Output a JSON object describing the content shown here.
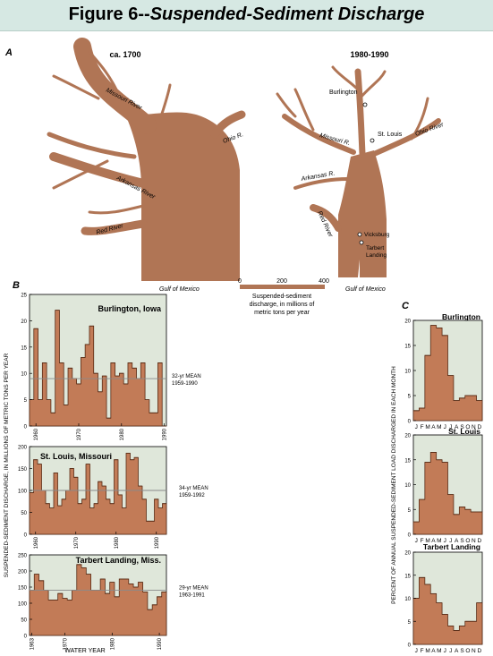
{
  "figure_title_prefix": "Figure 6--",
  "figure_title_main": "Suspended-Sediment Discharge",
  "panel_a": {
    "letter": "A",
    "left_title": "ca. 1700",
    "right_title": "1980-1990",
    "left_labels": {
      "missouri": "Missouri River",
      "ohio": "Ohio R.",
      "arkansas": "Arkansas River",
      "red": "Red River",
      "gulf": "Gulf of Mexico"
    },
    "right_labels": {
      "burlington": "Burlington",
      "stlouis": "St. Louis",
      "ohio": "Ohio River",
      "missouri": "Missouri R.",
      "arkansas": "Arkansas R.",
      "red": "Red River",
      "vicksburg": "Vicksburg",
      "tarbert": "Tarbert\nLanding",
      "gulf": "Gulf of Mexico"
    },
    "scale_ticks": [
      "0",
      "200",
      "400"
    ],
    "scale_caption": [
      "Suspended-sediment",
      "discharge, in millions of",
      "metric tons per year"
    ]
  },
  "colors": {
    "bar_fill": "#c27b57",
    "bar_stroke": "#5a2d17",
    "panel_bg": "#dfe7da",
    "title_bg": "#d6e8e3",
    "mean_line": "#8a8a8a"
  },
  "chart_data": [
    {
      "type": "area",
      "panel": "B",
      "title": "Burlington, Iowa",
      "x": [
        1959,
        1960,
        1961,
        1962,
        1963,
        1964,
        1965,
        1966,
        1967,
        1968,
        1969,
        1970,
        1971,
        1972,
        1973,
        1974,
        1975,
        1976,
        1977,
        1978,
        1979,
        1980,
        1981,
        1982,
        1983,
        1984,
        1985,
        1986,
        1987,
        1988,
        1989,
        1990
      ],
      "values": [
        5,
        18.5,
        5,
        12,
        5,
        2.5,
        22,
        12,
        4,
        11,
        9,
        8,
        13,
        15.5,
        19,
        10,
        6.5,
        9.5,
        1.5,
        12,
        9.5,
        10,
        8,
        12,
        11,
        9,
        12,
        5,
        2.5,
        2.5,
        12,
        0
      ],
      "ylim": [
        0,
        25
      ],
      "yticks": [
        0,
        5,
        10,
        15,
        20,
        25
      ],
      "xticks": [
        "1960",
        "1970",
        "1980",
        "1990"
      ],
      "mean": 9,
      "mean_label": [
        "32-yr MEAN",
        "1959-1990"
      ]
    },
    {
      "type": "area",
      "panel": "B",
      "title": "St. Louis, Missouri",
      "x": [
        1959,
        1960,
        1961,
        1962,
        1963,
        1964,
        1965,
        1966,
        1967,
        1968,
        1969,
        1970,
        1971,
        1972,
        1973,
        1974,
        1975,
        1976,
        1977,
        1978,
        1979,
        1980,
        1981,
        1982,
        1983,
        1984,
        1985,
        1986,
        1987,
        1988,
        1989,
        1990,
        1991,
        1992
      ],
      "values": [
        95,
        170,
        160,
        100,
        70,
        60,
        140,
        65,
        80,
        100,
        150,
        130,
        70,
        80,
        160,
        60,
        70,
        120,
        110,
        80,
        70,
        170,
        90,
        60,
        185,
        170,
        175,
        110,
        80,
        30,
        30,
        80,
        60,
        70
      ],
      "ylim": [
        0,
        200
      ],
      "yticks": [
        0,
        50,
        100,
        150,
        200
      ],
      "xticks": [
        "1960",
        "1970",
        "1980",
        "1990"
      ],
      "mean": 100,
      "mean_label": [
        "34-yr MEAN",
        "1959-1992"
      ]
    },
    {
      "type": "area",
      "panel": "B",
      "title": "Tarbert Landing, Miss.",
      "x": [
        1963,
        1964,
        1965,
        1966,
        1967,
        1968,
        1969,
        1970,
        1971,
        1972,
        1973,
        1974,
        1975,
        1976,
        1977,
        1978,
        1979,
        1980,
        1981,
        1982,
        1983,
        1984,
        1985,
        1986,
        1987,
        1988,
        1989,
        1990,
        1991
      ],
      "values": [
        140,
        190,
        170,
        140,
        110,
        110,
        130,
        115,
        110,
        140,
        220,
        210,
        190,
        140,
        140,
        175,
        130,
        165,
        120,
        175,
        175,
        160,
        150,
        165,
        135,
        80,
        95,
        120,
        135
      ],
      "ylim": [
        0,
        250
      ],
      "yticks": [
        0,
        50,
        100,
        150,
        200,
        250
      ],
      "xticks": [
        "1963",
        "1970",
        "1980",
        "1990"
      ],
      "mean": 140,
      "mean_label": [
        "29-yr MEAN",
        "1963-1991"
      ]
    },
    {
      "type": "area",
      "panel": "C",
      "title": "Burlington",
      "categories": [
        "J",
        "F",
        "M",
        "A",
        "M",
        "J",
        "J",
        "A",
        "S",
        "O",
        "N",
        "D"
      ],
      "values": [
        2,
        2.5,
        13,
        19,
        18.5,
        17,
        9,
        4,
        4.5,
        5,
        5,
        4
      ],
      "ylim": [
        0,
        20
      ],
      "yticks": [
        0,
        5,
        10,
        15,
        20
      ]
    },
    {
      "type": "area",
      "panel": "C",
      "title": "St. Louis",
      "categories": [
        "J",
        "F",
        "M",
        "A",
        "M",
        "J",
        "J",
        "A",
        "S",
        "O",
        "N",
        "D"
      ],
      "values": [
        2.5,
        7,
        14.5,
        16.5,
        15,
        14.5,
        8,
        4,
        5.5,
        5,
        4.5,
        4.5
      ],
      "ylim": [
        0,
        20
      ],
      "yticks": [
        0,
        5,
        10,
        15,
        20
      ]
    },
    {
      "type": "area",
      "panel": "C",
      "title": "Tarbert Landing",
      "categories": [
        "J",
        "F",
        "M",
        "A",
        "M",
        "J",
        "J",
        "A",
        "S",
        "O",
        "N",
        "D"
      ],
      "values": [
        10,
        14.5,
        13,
        11,
        9,
        6.5,
        4,
        3,
        4,
        5,
        5,
        9
      ],
      "ylim": [
        0,
        20
      ],
      "yticks": [
        0,
        5,
        10,
        15,
        20
      ]
    }
  ],
  "panel_b": {
    "letter": "B",
    "ylabel": "SUSPENDED-SEDIMENT DISCHARGE, IN MILLIONS OF METRIC TONS PER YEAR",
    "xlabel": "WATER YEAR"
  },
  "panel_c": {
    "letter": "C",
    "ylabel": "PERCENT OF ANNUAL SUSPENDED-SEDIMENT LOAD DISCHARGED IN EACH MONTH"
  }
}
